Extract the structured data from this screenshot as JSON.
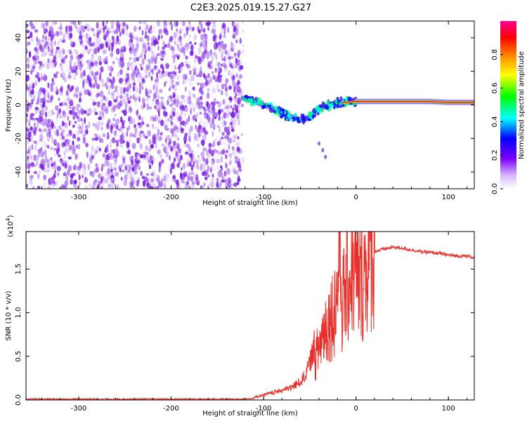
{
  "title": "C2E3.2025.019.15.27.G27",
  "chart_data": [
    {
      "type": "heatmap",
      "xlabel": "Height of straight line (km)",
      "ylabel": "Frequency (Hz)",
      "xlim": [
        -357,
        128
      ],
      "ylim": [
        -50,
        50
      ],
      "xticks": [
        -300,
        -200,
        -100,
        0,
        100
      ],
      "yticks": [
        -40,
        -20,
        0,
        20,
        40
      ],
      "noise_region_x": [
        -357,
        -122
      ],
      "ridge": {
        "x": [
          -122,
          -110,
          -100,
          -90,
          -80,
          -70,
          -60,
          -52,
          -45,
          -38,
          -30,
          -20,
          -10,
          0,
          20,
          40,
          60,
          80,
          100,
          128
        ],
        "y": [
          4,
          2,
          0,
          -2,
          -5,
          -7,
          -9,
          -8,
          -5,
          -2,
          0,
          1,
          1.5,
          2,
          2,
          2,
          2,
          2,
          1.5,
          1.5
        ]
      },
      "tail": {
        "x": [
          -40,
          -36,
          -33
        ],
        "y": [
          -23,
          -27,
          -31
        ]
      },
      "colorbar": {
        "label": "Normalized spectral amplitude",
        "ticks": [
          "0.0",
          "0.2",
          "0.4",
          "0.6",
          "0.8"
        ],
        "tick_values": [
          0.0,
          0.2,
          0.4,
          0.6,
          0.8
        ],
        "range": [
          0,
          1
        ]
      }
    },
    {
      "type": "line",
      "xlabel": "Height of straight line (km)",
      "ylabel": "SNR (10 * v/v)",
      "exponent_label": "(x10",
      "exponent_power": "4",
      "exponent_close": ")",
      "xlim": [
        -357,
        128
      ],
      "ylim": [
        0,
        1.93
      ],
      "xticks": [
        -300,
        -200,
        -100,
        0,
        100
      ],
      "yticks": [
        "0.0",
        "0.5",
        "1.0",
        "1.5"
      ],
      "ytick_values": [
        0.0,
        0.5,
        1.0,
        1.5
      ],
      "series": [
        {
          "color": "#e8302a",
          "x": [
            -357,
            -300,
            -200,
            -120,
            -110,
            -100,
            -90,
            -80,
            -70,
            -60,
            -55,
            -50,
            -45,
            -40,
            -35,
            -30,
            -25,
            -20,
            -18,
            -15,
            -10,
            -5,
            0,
            5,
            10,
            15,
            20,
            30,
            40,
            50,
            60,
            70,
            80,
            90,
            100,
            110,
            120,
            128
          ],
          "y": [
            0.01,
            0.01,
            0.01,
            0.01,
            0.02,
            0.04,
            0.06,
            0.08,
            0.1,
            0.15,
            0.2,
            0.3,
            0.45,
            0.6,
            0.8,
            0.9,
            1.0,
            1.2,
            1.9,
            1.1,
            1.3,
            1.5,
            1.4,
            1.35,
            1.5,
            1.65,
            1.7,
            1.73,
            1.75,
            1.74,
            1.72,
            1.7,
            1.69,
            1.68,
            1.66,
            1.65,
            1.65,
            1.63
          ]
        }
      ]
    }
  ]
}
